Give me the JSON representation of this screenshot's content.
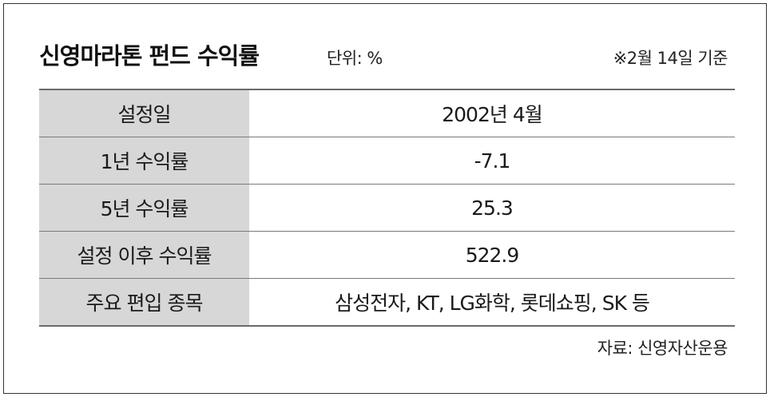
{
  "header": {
    "title": "신영마라톤 펀드 수익률",
    "unit": "단위: %",
    "basis": "※2월 14일 기준"
  },
  "table": {
    "rows": [
      {
        "label": "설정일",
        "value": "2002년 4월"
      },
      {
        "label": "1년 수익률",
        "value": "-7.1"
      },
      {
        "label": "5년 수익률",
        "value": "25.3"
      },
      {
        "label": "설정 이후 수익률",
        "value": "522.9"
      },
      {
        "label": "주요 편입 종목",
        "value": "삼성전자, KT, LG화학, 롯데쇼핑, SK 등"
      }
    ]
  },
  "footer": {
    "source": "자료: 신영자산운용"
  },
  "colors": {
    "label_bg": "#d7d7d7",
    "border": "#333333"
  }
}
